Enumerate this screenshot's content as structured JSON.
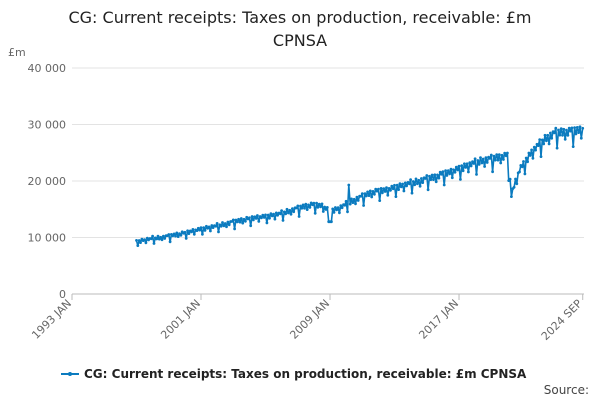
{
  "chart_data": {
    "type": "line",
    "title_lines": [
      "CG: Current receipts: Taxes on production, receivable: £m",
      "CPNSA"
    ],
    "ylabel": "£m",
    "ylim": [
      0,
      40000
    ],
    "yticks": [
      0,
      10000,
      20000,
      30000,
      40000
    ],
    "ytick_labels": [
      "0",
      "10 000",
      "20 000",
      "30 000",
      "40 000"
    ],
    "xlim": [
      1993.0,
      2024.75
    ],
    "xticks": [
      {
        "value": 1993.0,
        "label": "1993 JAN"
      },
      {
        "value": 2001.0,
        "label": "2001 JAN"
      },
      {
        "value": 2009.0,
        "label": "2009 JAN"
      },
      {
        "value": 2017.0,
        "label": "2017 JAN"
      },
      {
        "value": 2024.67,
        "label": "2024 SEP"
      }
    ],
    "grid": true,
    "legend_position": "bottom",
    "color": "#0b7bbf",
    "series": [
      {
        "name": "CG: Current receipts: Taxes on production, receivable: £m CPNSA",
        "anchors": [
          [
            1997.0,
            9200
          ],
          [
            1997.5,
            9500
          ],
          [
            1998.0,
            9800
          ],
          [
            1998.5,
            9900
          ],
          [
            1999.0,
            10200
          ],
          [
            1999.5,
            10500
          ],
          [
            2000.0,
            10700
          ],
          [
            2000.5,
            11100
          ],
          [
            2001.0,
            11400
          ],
          [
            2001.5,
            11700
          ],
          [
            2002.0,
            12000
          ],
          [
            2002.5,
            12300
          ],
          [
            2003.0,
            12700
          ],
          [
            2003.5,
            13000
          ],
          [
            2004.0,
            13200
          ],
          [
            2004.5,
            13500
          ],
          [
            2005.0,
            13600
          ],
          [
            2005.5,
            13900
          ],
          [
            2006.0,
            14200
          ],
          [
            2006.5,
            14600
          ],
          [
            2007.0,
            15100
          ],
          [
            2007.5,
            15500
          ],
          [
            2008.0,
            15700
          ],
          [
            2008.5,
            15500
          ],
          [
            2009.0,
            14600
          ],
          [
            2009.5,
            15000
          ],
          [
            2010.0,
            15800
          ],
          [
            2010.5,
            16500
          ],
          [
            2011.0,
            17200
          ],
          [
            2011.5,
            17800
          ],
          [
            2012.0,
            18100
          ],
          [
            2012.5,
            18300
          ],
          [
            2013.0,
            18700
          ],
          [
            2013.5,
            19100
          ],
          [
            2014.0,
            19500
          ],
          [
            2014.5,
            19800
          ],
          [
            2015.0,
            20300
          ],
          [
            2015.5,
            20600
          ],
          [
            2016.0,
            21100
          ],
          [
            2016.5,
            21500
          ],
          [
            2017.0,
            22000
          ],
          [
            2017.5,
            22600
          ],
          [
            2018.0,
            23100
          ],
          [
            2018.5,
            23500
          ],
          [
            2019.0,
            23800
          ],
          [
            2019.5,
            24100
          ],
          [
            2020.0,
            24300
          ],
          [
            2020.25,
            17500
          ],
          [
            2020.5,
            19800
          ],
          [
            2020.75,
            21800
          ],
          [
            2021.0,
            22800
          ],
          [
            2021.5,
            25000
          ],
          [
            2022.0,
            26400
          ],
          [
            2022.5,
            27600
          ],
          [
            2023.0,
            28400
          ],
          [
            2023.5,
            28500
          ],
          [
            2024.0,
            28600
          ],
          [
            2024.33,
            28800
          ],
          [
            2024.67,
            28900
          ]
        ]
      }
    ]
  },
  "source_label": "Source:"
}
